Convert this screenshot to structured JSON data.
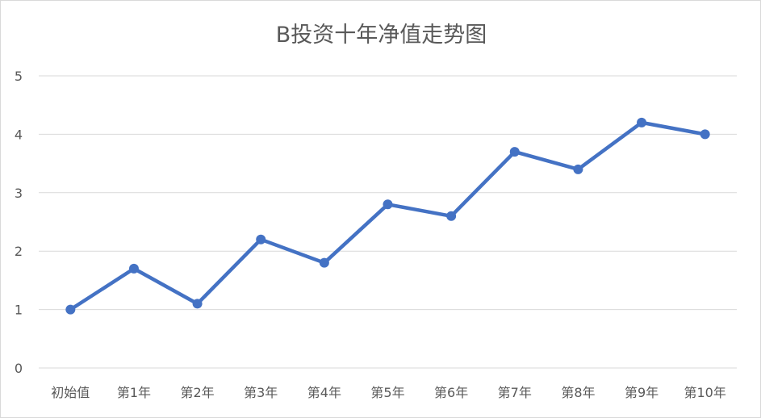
{
  "chart_data": {
    "type": "line",
    "title": "B投资十年净值走势图",
    "xlabel": "",
    "ylabel": "",
    "categories": [
      "初始值",
      "第1年",
      "第2年",
      "第3年",
      "第4年",
      "第5年",
      "第6年",
      "第7年",
      "第8年",
      "第9年",
      "第10年"
    ],
    "series": [
      {
        "values": [
          1.0,
          1.7,
          1.1,
          2.2,
          1.8,
          2.8,
          2.6,
          3.7,
          3.4,
          4.2,
          4.0
        ]
      }
    ],
    "ylim": [
      0,
      5
    ],
    "yticks": [
      0,
      1,
      2,
      3,
      4,
      5
    ],
    "grid": true,
    "legend": "none",
    "colors": {
      "series": "#4472c4",
      "grid": "#d9d9d9",
      "text": "#595959"
    }
  }
}
